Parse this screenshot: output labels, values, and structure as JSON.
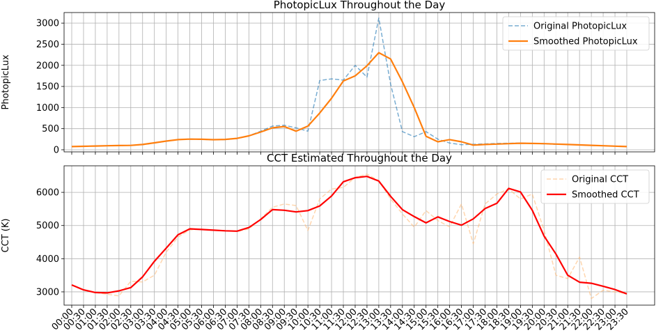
{
  "chart_data": [
    {
      "type": "line",
      "title": "PhotopicLux Throughout the Day",
      "ylabel": "PhotopicLux",
      "xlabel": "",
      "grid": true,
      "legend": "top-right",
      "ylim": [
        -50,
        3250
      ],
      "yticks": [
        0,
        500,
        1000,
        1500,
        2000,
        2500,
        3000
      ],
      "x": [
        "00:00",
        "00:30",
        "01:00",
        "01:30",
        "02:00",
        "02:30",
        "03:00",
        "03:30",
        "04:00",
        "04:30",
        "05:00",
        "05:30",
        "06:00",
        "06:30",
        "07:00",
        "07:30",
        "08:00",
        "08:30",
        "09:00",
        "09:30",
        "10:00",
        "10:30",
        "11:00",
        "11:30",
        "12:00",
        "12:30",
        "13:00",
        "13:30",
        "14:00",
        "14:30",
        "15:00",
        "15:30",
        "16:00",
        "16:30",
        "17:00",
        "17:30",
        "18:00",
        "18:30",
        "19:00",
        "19:30",
        "20:00",
        "20:30",
        "21:00",
        "21:30",
        "22:00",
        "22:30",
        "23:00",
        "23:30"
      ],
      "series": [
        {
          "name": "Original PhotopicLux",
          "color": "#1f77b4",
          "style": "dashed",
          "values": [
            75,
            80,
            88,
            95,
            100,
            105,
            120,
            160,
            200,
            240,
            255,
            245,
            235,
            240,
            265,
            330,
            440,
            560,
            580,
            520,
            440,
            1640,
            1680,
            1650,
            2000,
            1720,
            3120,
            1550,
            430,
            310,
            430,
            250,
            160,
            120,
            130,
            140,
            150,
            155,
            160,
            150,
            140,
            130,
            125,
            115,
            100,
            95,
            85,
            75
          ]
        },
        {
          "name": "Smoothed PhotopicLux",
          "color": "#ff7f0e",
          "style": "solid",
          "values": [
            75,
            82,
            88,
            95,
            100,
            104,
            125,
            165,
            205,
            240,
            252,
            248,
            238,
            245,
            270,
            330,
            420,
            520,
            550,
            440,
            560,
            870,
            1220,
            1630,
            1750,
            1990,
            2300,
            2150,
            1610,
            1000,
            320,
            190,
            240,
            190,
            110,
            125,
            135,
            145,
            155,
            150,
            145,
            135,
            125,
            115,
            105,
            95,
            85,
            75
          ]
        }
      ]
    },
    {
      "type": "line",
      "title": "CCT Estimated Throughout the Day",
      "ylabel": "CCT (K)",
      "xlabel": "",
      "grid": true,
      "legend": "top-right",
      "ylim": [
        2600,
        6800
      ],
      "yticks": [
        3000,
        4000,
        5000,
        6000
      ],
      "x": [
        "00:00",
        "00:30",
        "01:00",
        "01:30",
        "02:00",
        "02:30",
        "03:00",
        "03:30",
        "04:00",
        "04:30",
        "05:00",
        "05:30",
        "06:00",
        "06:30",
        "07:00",
        "07:30",
        "08:00",
        "08:30",
        "09:00",
        "09:30",
        "10:00",
        "10:30",
        "11:00",
        "11:30",
        "12:00",
        "12:30",
        "13:00",
        "13:30",
        "14:00",
        "14:30",
        "15:00",
        "15:30",
        "16:00",
        "16:30",
        "17:00",
        "17:30",
        "18:00",
        "18:30",
        "19:00",
        "19:30",
        "20:00",
        "20:30",
        "21:00",
        "21:30",
        "22:00",
        "22:30",
        "23:00",
        "23:30"
      ],
      "series": [
        {
          "name": "Original CCT",
          "color": "#ffbb78",
          "style": "dashed",
          "values": [
            3200,
            3050,
            2980,
            2930,
            2880,
            3320,
            3300,
            3500,
            4200,
            4650,
            4870,
            4890,
            4860,
            4840,
            4820,
            4900,
            5200,
            5550,
            5650,
            5600,
            4850,
            5800,
            6100,
            6150,
            6450,
            6550,
            6350,
            5800,
            5350,
            4950,
            5450,
            5150,
            4960,
            5650,
            4450,
            5650,
            5950,
            6100,
            5800,
            5950,
            4850,
            3500,
            3400,
            4050,
            2800,
            3050,
            3000,
            2950
          ]
        },
        {
          "name": "Smoothed CCT",
          "color": "#ff0000",
          "style": "solid",
          "values": [
            3210,
            3060,
            2980,
            2970,
            3030,
            3130,
            3450,
            3920,
            4320,
            4720,
            4900,
            4880,
            4860,
            4840,
            4830,
            4940,
            5180,
            5480,
            5460,
            5410,
            5450,
            5590,
            5890,
            6320,
            6440,
            6480,
            6340,
            5880,
            5480,
            5270,
            5080,
            5260,
            5120,
            5010,
            5200,
            5510,
            5670,
            6120,
            6010,
            5460,
            4680,
            4140,
            3500,
            3290,
            3260,
            3170,
            3070,
            2940
          ]
        }
      ]
    }
  ]
}
